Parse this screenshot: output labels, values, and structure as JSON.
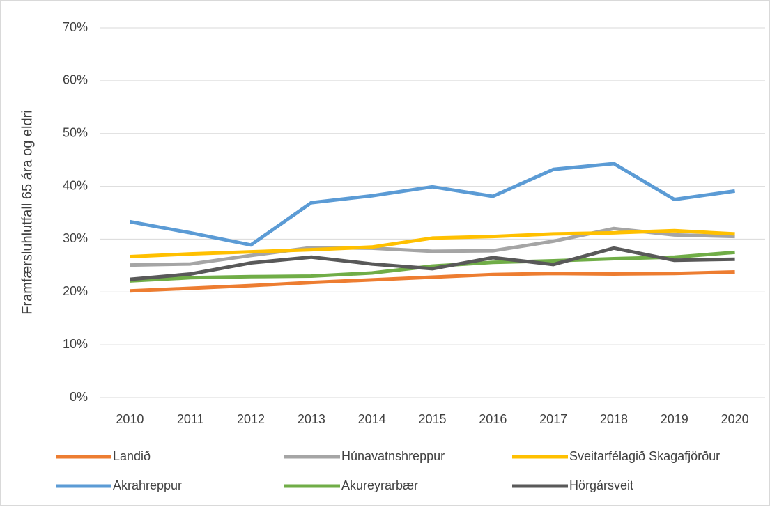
{
  "chart_data": {
    "type": "line",
    "y_label": "Framfærsluhlutfall 65 ára og eldri",
    "categories": [
      "2010",
      "2011",
      "2012",
      "2013",
      "2014",
      "2015",
      "2016",
      "2017",
      "2018",
      "2019",
      "2020"
    ],
    "series": [
      {
        "name": "Landið",
        "color": "#ed7d31",
        "values": [
          20.2,
          20.7,
          21.2,
          21.8,
          22.3,
          22.8,
          23.3,
          23.5,
          23.4,
          23.5,
          23.8
        ]
      },
      {
        "name": "Húnavatnshreppur",
        "color": "#a5a5a5",
        "values": [
          25.1,
          25.3,
          26.9,
          28.4,
          28.3,
          27.7,
          27.8,
          29.6,
          32.0,
          30.8,
          30.5
        ]
      },
      {
        "name": "Sveitarfélagið Skagafjörður",
        "color": "#ffc000",
        "values": [
          26.7,
          27.2,
          27.6,
          28.0,
          28.5,
          30.2,
          30.5,
          31.0,
          31.2,
          31.6,
          31.0
        ]
      },
      {
        "name": "Akrahreppur",
        "color": "#5b9bd5",
        "values": [
          33.3,
          31.2,
          28.9,
          36.9,
          38.2,
          39.9,
          38.1,
          43.2,
          44.3,
          37.5,
          39.1
        ]
      },
      {
        "name": "Akureyrarbær",
        "color": "#70ad47",
        "values": [
          22.1,
          22.7,
          22.9,
          23.0,
          23.6,
          24.9,
          25.6,
          25.9,
          26.3,
          26.6,
          27.5
        ]
      },
      {
        "name": "Hörgársveit",
        "color": "#595959",
        "values": [
          22.4,
          23.4,
          25.5,
          26.6,
          25.3,
          24.4,
          26.5,
          25.2,
          28.3,
          26.0,
          26.2
        ]
      }
    ],
    "ylim": [
      0,
      70
    ],
    "yticks": [
      {
        "value": 0,
        "label": "0%"
      },
      {
        "value": 10,
        "label": "10%"
      },
      {
        "value": 20,
        "label": "20%"
      },
      {
        "value": 30,
        "label": "30%"
      },
      {
        "value": 40,
        "label": "40%"
      },
      {
        "value": 50,
        "label": "50%"
      },
      {
        "value": 60,
        "label": "60%"
      },
      {
        "value": 70,
        "label": "70%"
      }
    ],
    "grid": true,
    "legend": "bottom"
  }
}
